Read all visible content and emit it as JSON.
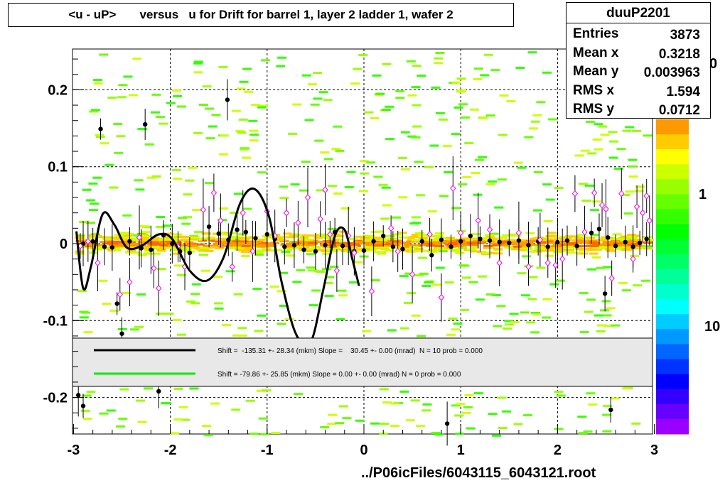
{
  "title": "<u - uP>       versus   u for Drift for barrel 1, layer 2 ladder 1, wafer 2",
  "stats": {
    "name": "duuP2201",
    "rows": [
      {
        "label": "Entries",
        "value": "3873"
      },
      {
        "label": "Mean x",
        "value": "0.3218"
      },
      {
        "label": "Mean y",
        "value": "0.003963"
      },
      {
        "label": "RMS x",
        "value": "1.594"
      },
      {
        "label": "RMS y",
        "value": "0.0712"
      }
    ]
  },
  "footer": "../P06icFiles/6043115_6043121.root",
  "colorbar": {
    "labels": [
      "0",
      "1",
      "10"
    ],
    "colors": [
      "#ff9900",
      "#ffcc00",
      "#ffff00",
      "#ccff00",
      "#99ff00",
      "#66ff00",
      "#33ff00",
      "#00ff00",
      "#00ff33",
      "#00ff66",
      "#00ff99",
      "#00ffcc",
      "#00ffff",
      "#00ccff",
      "#0099ff",
      "#0066ff",
      "#0033ff",
      "#0000ff",
      "#3300ff",
      "#6600ff",
      "#9900ff"
    ]
  },
  "legend": [
    {
      "color": "#000000",
      "text": "Shift =  -135.31 +- 28.34 (mkm) Slope =    30.45 +- 0.00 (mrad)  N = 10 prob = 0.000"
    },
    {
      "color": "#00ee00",
      "text": "Shift =   -79.86 +- 25.85 (mkm) Slope =     0.00 +- 0.00 (mrad)  N = 0 prob = 0.000"
    }
  ],
  "chart_data": {
    "type": "scatter",
    "xlim": [
      -3,
      3
    ],
    "ylim": [
      -0.25,
      0.25
    ],
    "x_ticks": [
      "-3",
      "-2",
      "-1",
      "0",
      "1",
      "2",
      "3"
    ],
    "y_ticks": [
      "0.2",
      "0.1",
      "0",
      "-0.1",
      "-0.2"
    ],
    "grid": true,
    "black_profile": [
      {
        "x": -2.72,
        "y": 0.149
      },
      {
        "x": -2.26,
        "y": 0.155
      },
      {
        "x": -1.41,
        "y": 0.187
      },
      {
        "x": -2.55,
        "y": -0.078
      },
      {
        "x": -2.5,
        "y": -0.117
      },
      {
        "x": -2.95,
        "y": -0.197
      },
      {
        "x": -2.9,
        "y": -0.211
      },
      {
        "x": -2.12,
        "y": -0.192
      },
      {
        "x": 0.86,
        "y": -0.234
      },
      {
        "x": 2.55,
        "y": -0.216
      },
      {
        "x": 2.49,
        "y": -0.065
      },
      {
        "x": -2.9,
        "y": 0.0
      },
      {
        "x": -2.8,
        "y": 0.003
      },
      {
        "x": -2.68,
        "y": -0.004
      },
      {
        "x": -2.6,
        "y": -0.005
      },
      {
        "x": -2.42,
        "y": 0.003
      },
      {
        "x": -2.3,
        "y": -0.006
      },
      {
        "x": -2.2,
        "y": -0.008
      },
      {
        "x": -2.07,
        "y": 0.011
      },
      {
        "x": -1.98,
        "y": 0.0
      },
      {
        "x": -1.9,
        "y": -0.01
      },
      {
        "x": -1.8,
        "y": -0.012
      },
      {
        "x": -1.6,
        "y": 0.022
      },
      {
        "x": -1.5,
        "y": 0.013
      },
      {
        "x": -1.4,
        "y": 0.005
      },
      {
        "x": -1.31,
        "y": 0.018
      },
      {
        "x": -1.22,
        "y": 0.015
      },
      {
        "x": -1.12,
        "y": 0.007
      },
      {
        "x": -1.0,
        "y": 0.012
      },
      {
        "x": -0.92,
        "y": 0.006
      },
      {
        "x": -0.82,
        "y": -0.004
      },
      {
        "x": -0.72,
        "y": -0.002
      },
      {
        "x": -0.62,
        "y": -0.008
      },
      {
        "x": -0.5,
        "y": -0.01
      },
      {
        "x": -0.4,
        "y": -0.002
      },
      {
        "x": -0.3,
        "y": 0.015
      },
      {
        "x": -0.22,
        "y": -0.003
      },
      {
        "x": -0.1,
        "y": -0.01
      },
      {
        "x": 0.0,
        "y": -0.009
      },
      {
        "x": 0.1,
        "y": 0.003
      },
      {
        "x": 0.2,
        "y": 0.01
      },
      {
        "x": 0.3,
        "y": -0.004
      },
      {
        "x": 0.4,
        "y": -0.007
      },
      {
        "x": 0.6,
        "y": 0.003
      },
      {
        "x": 0.7,
        "y": -0.015
      },
      {
        "x": 0.8,
        "y": 0.005
      },
      {
        "x": 0.9,
        "y": -0.004
      },
      {
        "x": 1.0,
        "y": 0.003
      },
      {
        "x": 1.1,
        "y": 0.01
      },
      {
        "x": 1.2,
        "y": 0.006
      },
      {
        "x": 1.3,
        "y": 0.004
      },
      {
        "x": 1.4,
        "y": 0.002
      },
      {
        "x": 1.5,
        "y": 0.001
      },
      {
        "x": 1.6,
        "y": 0.004
      },
      {
        "x": 1.7,
        "y": -0.002
      },
      {
        "x": 1.8,
        "y": 0.003
      },
      {
        "x": 1.9,
        "y": -0.004
      },
      {
        "x": 2.0,
        "y": 0.002
      },
      {
        "x": 2.1,
        "y": 0.004
      },
      {
        "x": 2.2,
        "y": -0.003
      },
      {
        "x": 2.35,
        "y": 0.014
      },
      {
        "x": 2.43,
        "y": 0.019
      },
      {
        "x": 2.52,
        "y": 0.008
      },
      {
        "x": 2.6,
        "y": -0.003
      },
      {
        "x": 2.7,
        "y": 0.002
      },
      {
        "x": 2.78,
        "y": -0.004
      },
      {
        "x": 2.85,
        "y": 0.001
      },
      {
        "x": 2.92,
        "y": 0.006
      }
    ],
    "magenta_profile": [
      {
        "x": -2.93,
        "y": -0.003
      },
      {
        "x": -2.85,
        "y": 0.003
      },
      {
        "x": -2.75,
        "y": -0.025
      },
      {
        "x": -2.52,
        "y": -0.066
      },
      {
        "x": -2.42,
        "y": -0.05
      },
      {
        "x": -2.32,
        "y": 0.008
      },
      {
        "x": -2.17,
        "y": -0.032
      },
      {
        "x": -2.12,
        "y": -0.058
      },
      {
        "x": -1.92,
        "y": -0.004
      },
      {
        "x": -1.85,
        "y": -0.03
      },
      {
        "x": -1.66,
        "y": 0.044
      },
      {
        "x": -1.55,
        "y": 0.066
      },
      {
        "x": -1.48,
        "y": 0.03
      },
      {
        "x": -1.36,
        "y": -0.03
      },
      {
        "x": -1.25,
        "y": 0.04
      },
      {
        "x": -1.15,
        "y": -0.01
      },
      {
        "x": -1.0,
        "y": 0.042
      },
      {
        "x": -0.92,
        "y": 0.01
      },
      {
        "x": -0.8,
        "y": 0.04
      },
      {
        "x": -0.68,
        "y": 0.027
      },
      {
        "x": -0.58,
        "y": 0.06
      },
      {
        "x": -0.45,
        "y": 0.032
      },
      {
        "x": -0.4,
        "y": 0.07
      },
      {
        "x": -0.35,
        "y": 0.012
      },
      {
        "x": -0.28,
        "y": -0.035
      },
      {
        "x": -0.16,
        "y": 0.01
      },
      {
        "x": -0.1,
        "y": -0.012
      },
      {
        "x": 0.08,
        "y": -0.062
      },
      {
        "x": 0.28,
        "y": 0.02
      },
      {
        "x": 0.35,
        "y": -0.01
      },
      {
        "x": 0.5,
        "y": -0.04
      },
      {
        "x": 0.68,
        "y": 0.012
      },
      {
        "x": 0.8,
        "y": -0.07
      },
      {
        "x": 0.92,
        "y": 0.072
      },
      {
        "x": 1.0,
        "y": 0.014
      },
      {
        "x": 1.18,
        "y": 0.03
      },
      {
        "x": 1.3,
        "y": 0.018
      },
      {
        "x": 1.4,
        "y": -0.025
      },
      {
        "x": 1.6,
        "y": 0.014
      },
      {
        "x": 1.7,
        "y": -0.03
      },
      {
        "x": 1.82,
        "y": 0.005
      },
      {
        "x": 1.9,
        "y": -0.025
      },
      {
        "x": 1.98,
        "y": -0.028
      },
      {
        "x": 2.05,
        "y": -0.02
      },
      {
        "x": 2.18,
        "y": 0.065
      },
      {
        "x": 2.28,
        "y": 0.015
      },
      {
        "x": 2.38,
        "y": 0.066
      },
      {
        "x": 2.46,
        "y": 0.05
      },
      {
        "x": 2.5,
        "y": 0.045
      },
      {
        "x": 2.56,
        "y": -0.045
      },
      {
        "x": 2.66,
        "y": 0.065
      },
      {
        "x": 2.78,
        "y": -0.02
      },
      {
        "x": 2.82,
        "y": 0.048
      },
      {
        "x": 2.88,
        "y": 0.04
      },
      {
        "x": 2.92,
        "y": 0.062
      },
      {
        "x": 2.95,
        "y": 0.03
      }
    ],
    "fit_curve_x_range": [
      -2.97,
      -0.05
    ]
  }
}
